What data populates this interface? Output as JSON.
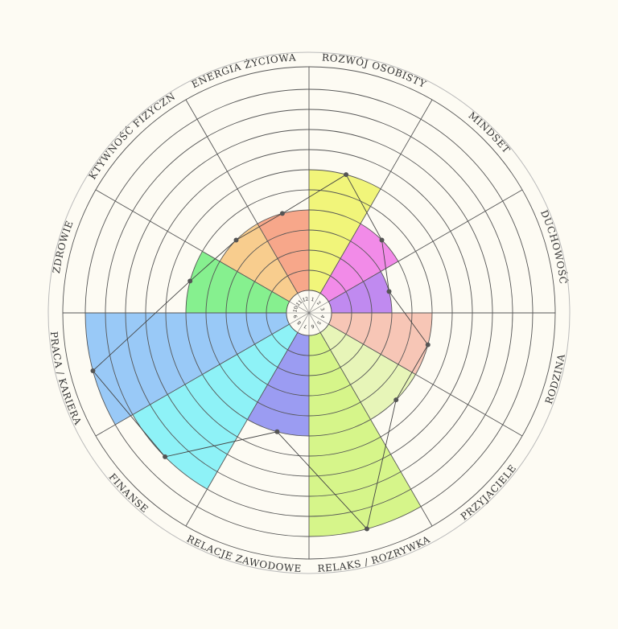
{
  "wheel": {
    "max_level": 10,
    "categories": [
      {
        "label": "ROZWÓJ OSOBISTY",
        "value": 6,
        "color": "#f1f57a"
      },
      {
        "label": "MINDSET",
        "value": 4,
        "color": "#f28be8"
      },
      {
        "label": "DUCHOWOŚĆ",
        "value": 3,
        "color": "#c08af0"
      },
      {
        "label": "RODZINA",
        "value": 5,
        "color": "#f7c6b6"
      },
      {
        "label": "RODZINA_2",
        "value": 5,
        "color": "#f7c6b6",
        "hidden_label": true
      },
      {
        "label": "PRZYJACIELE",
        "value": 5,
        "color": "#e7f5b8"
      },
      {
        "label": "RELAKS / ROZRYWKA",
        "value": 10,
        "color": "#d6f58a"
      },
      {
        "label": "RELACJE ZAWODOWE",
        "value": 5,
        "color": "#9b9cf2"
      },
      {
        "label": "FINANSE",
        "value": 9,
        "color": "#8ef2f7"
      },
      {
        "label": "PRACA / KARIERA",
        "value": 10,
        "color": "#99c9f7"
      },
      {
        "label": "ZDROWIE",
        "value": 5,
        "color": "#86f08f"
      },
      {
        "label": "AKTYWNOŚĆ FIZYCZNA",
        "value": 4,
        "color": "#f8cd8e"
      },
      {
        "label": "ENERGIA ŻYCIOWA",
        "value": 4,
        "color": "#f7a78a"
      }
    ]
  }
}
